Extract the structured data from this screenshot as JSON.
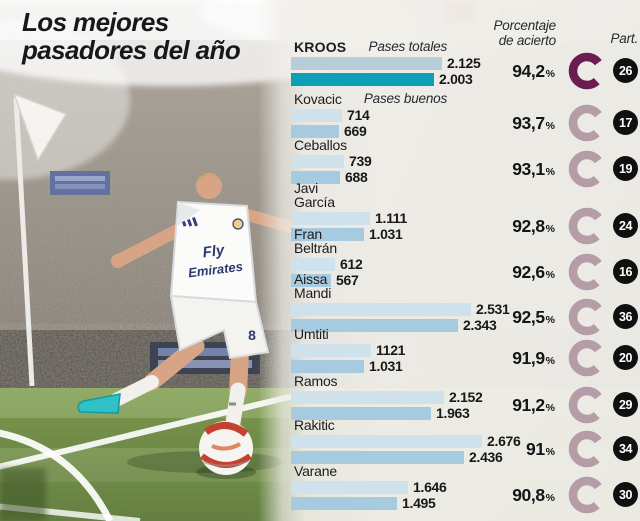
{
  "title": {
    "line1": "Los mejores",
    "line2": "pasadores del año"
  },
  "headers": {
    "pases_totales": "Pases totales",
    "pases_buenos": "Pases buenos",
    "porcentaje": "Porcentaje\nde acierto",
    "part": "Part."
  },
  "colors": {
    "bar_total": "#cfe2ec",
    "bar_good": "#a6cadf",
    "kroos_bar_total": "#b7cdd9",
    "kroos_bar_good": "#0d9fb7",
    "ring_normal": "#b59da7",
    "ring_highlight": "#6b1d51",
    "badge_bg": "#101010",
    "title_color": "#17181c"
  },
  "chart_data": {
    "type": "bar",
    "orientation": "horizontal",
    "title": "Los mejores pasadores del año",
    "percent_symbol": "%",
    "series_labels": [
      "Pases totales",
      "Pases buenos"
    ],
    "categories": [
      "KROOS",
      "Kovacic",
      "Ceballos",
      "Javi García",
      "Fran Beltrán",
      "Aissa Mandi",
      "Umtiti",
      "Ramos",
      "Rakitic",
      "Varane"
    ],
    "series": [
      {
        "name": "Pases totales",
        "values": [
          2125,
          714,
          739,
          1111,
          612,
          2531,
          1121,
          2152,
          2676,
          1646
        ]
      },
      {
        "name": "Pases buenos",
        "values": [
          2003,
          669,
          688,
          1031,
          567,
          2343,
          1031,
          1963,
          2436,
          1495
        ]
      }
    ],
    "accuracy_pct": [
      94.2,
      93.7,
      93.1,
      92.8,
      92.6,
      92.5,
      91.9,
      91.2,
      91.0,
      90.8
    ],
    "matches": [
      26,
      17,
      19,
      24,
      16,
      36,
      20,
      29,
      34,
      30
    ],
    "value_axis_max": 2676,
    "players": [
      {
        "name": "KROOS",
        "total": 2125,
        "total_label": "2.125",
        "good": 2003,
        "good_label": "2.003",
        "accuracy": "94,2",
        "matches": "26",
        "highlight": true
      },
      {
        "name": "Kovacic",
        "total": 714,
        "total_label": "714",
        "good": 669,
        "good_label": "669",
        "accuracy": "93,7",
        "matches": "17",
        "highlight": false
      },
      {
        "name": "Ceballos",
        "total": 739,
        "total_label": "739",
        "good": 688,
        "good_label": "688",
        "accuracy": "93,1",
        "matches": "19",
        "highlight": false
      },
      {
        "name": "Javi\nGarcía",
        "total": 1111,
        "total_label": "1.111",
        "good": 1031,
        "good_label": "1.031",
        "accuracy": "92,8",
        "matches": "24",
        "highlight": false
      },
      {
        "name": "Fran\nBeltrán",
        "total": 612,
        "total_label": "612",
        "good": 567,
        "good_label": "567",
        "accuracy": "92,6",
        "matches": "16",
        "highlight": false
      },
      {
        "name": "Aissa\nMandi",
        "total": 2531,
        "total_label": "2.531",
        "good": 2343,
        "good_label": "2.343",
        "accuracy": "92,5",
        "matches": "36",
        "highlight": false
      },
      {
        "name": "Umtiti",
        "total": 1121,
        "total_label": "1121",
        "good": 1031,
        "good_label": "1.031",
        "accuracy": "91,9",
        "matches": "20",
        "highlight": false
      },
      {
        "name": "Ramos",
        "total": 2152,
        "total_label": "2.152",
        "good": 1963,
        "good_label": "1.963",
        "accuracy": "91,2",
        "matches": "29",
        "highlight": false
      },
      {
        "name": "Rakitic",
        "total": 2676,
        "total_label": "2.676",
        "good": 2436,
        "good_label": "2.436",
        "accuracy": "91",
        "matches": "34",
        "highlight": false
      },
      {
        "name": "Varane",
        "total": 1646,
        "total_label": "1.646",
        "good": 1495,
        "good_label": "1.495",
        "accuracy": "90,8",
        "matches": "30",
        "highlight": false
      }
    ]
  },
  "photo": {
    "jersey_line1": "Fly",
    "jersey_line2": "Emirates",
    "shorts_number": "8"
  }
}
